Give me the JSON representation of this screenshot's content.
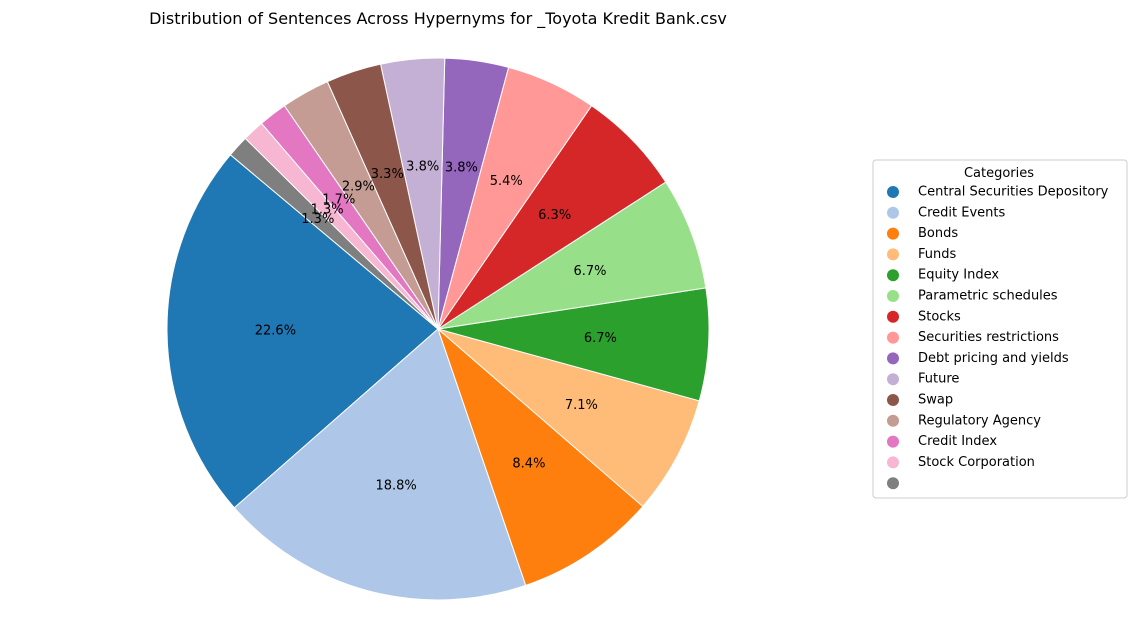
{
  "chart_data": {
    "type": "pie",
    "title": "Distribution of Sentences Across Hypernyms for _Toyota Kredit Bank.csv",
    "legend_title": "Categories",
    "legend_position": "right",
    "start_angle_deg": 140,
    "direction": "counterclockwise",
    "slices": [
      {
        "label": "Central Securities Depository",
        "value": 22.6,
        "pct_label": "22.6%",
        "color": "#1f77b4"
      },
      {
        "label": "Credit Events",
        "value": 18.8,
        "pct_label": "18.8%",
        "color": "#aec7e8"
      },
      {
        "label": "Bonds",
        "value": 8.4,
        "pct_label": "8.4%",
        "color": "#ff7f0e"
      },
      {
        "label": "Funds",
        "value": 7.1,
        "pct_label": "7.1%",
        "color": "#ffbb78"
      },
      {
        "label": "Equity Index",
        "value": 6.7,
        "pct_label": "6.7%",
        "color": "#2ca02c"
      },
      {
        "label": "Parametric schedules",
        "value": 6.7,
        "pct_label": "6.7%",
        "color": "#98df8a"
      },
      {
        "label": "Stocks",
        "value": 6.3,
        "pct_label": "6.3%",
        "color": "#d62728"
      },
      {
        "label": "Securities restrictions",
        "value": 5.4,
        "pct_label": "5.4%",
        "color": "#ff9896"
      },
      {
        "label": "Debt pricing and yields",
        "value": 3.8,
        "pct_label": "3.8%",
        "color": "#9467bd"
      },
      {
        "label": "Future",
        "value": 3.8,
        "pct_label": "3.8%",
        "color": "#c5b0d5"
      },
      {
        "label": "Swap",
        "value": 3.3,
        "pct_label": "3.3%",
        "color": "#8c564b"
      },
      {
        "label": "Regulatory Agency",
        "value": 2.9,
        "pct_label": "2.9%",
        "color": "#c49c94"
      },
      {
        "label": "Credit Index",
        "value": 1.7,
        "pct_label": "1.7%",
        "color": "#e377c2"
      },
      {
        "label": "Stock Corporation",
        "value": 1.3,
        "pct_label": "1.3%",
        "color": "#f7b6d2"
      },
      {
        "label": "",
        "value": 1.3,
        "pct_label": "1.3%",
        "color": "#7f7f7f"
      }
    ]
  }
}
